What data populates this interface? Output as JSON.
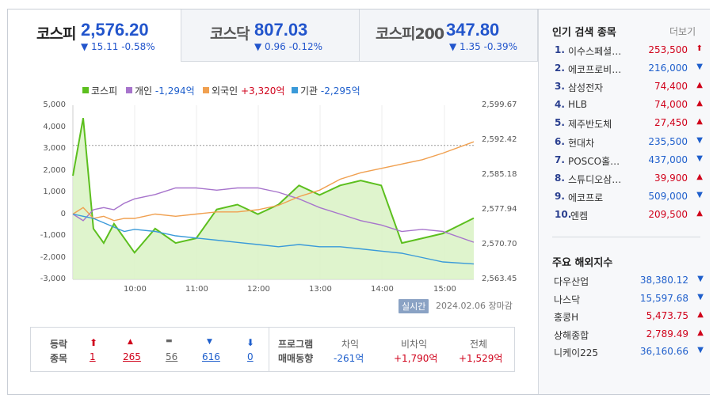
{
  "tabs": [
    {
      "name": "코스피",
      "value": "2,576.20",
      "change": "▼ 15.11 -0.58%",
      "active": true
    },
    {
      "name": "코스닥",
      "value": "807.03",
      "change": "▼ 0.96 -0.12%",
      "active": false
    },
    {
      "name": "코스피200",
      "value": "347.80",
      "change": "▼ 1.35 -0.39%",
      "active": false
    }
  ],
  "legend": [
    {
      "label": "코스피",
      "value": "",
      "color": "#5cbf1e"
    },
    {
      "label": "개인",
      "value": "-1,294억",
      "color": "#a774cc"
    },
    {
      "label": "외국인",
      "value": "+3,320억",
      "color": "#f0a050"
    },
    {
      "label": "기관",
      "value": "-2,295억",
      "color": "#3a9ad9"
    }
  ],
  "chart": {
    "left_axis": [
      "5,000",
      "4,000",
      "3,000",
      "2,000",
      "1,000",
      "0",
      "-1,000",
      "-2,000",
      "-3,000"
    ],
    "right_axis": [
      "2,599.67",
      "2,592.42",
      "2,585.18",
      "2,577.94",
      "2,570.70",
      "2,563.45"
    ],
    "x_axis": [
      "10:00",
      "11:00",
      "12:00",
      "13:00",
      "14:00",
      "15:00"
    ],
    "realtime_label": "실시간",
    "date": "2024.02.06 장마감"
  },
  "chart_data": {
    "type": "area",
    "x": [
      "09:00",
      "09:10",
      "09:20",
      "09:30",
      "09:40",
      "09:50",
      "10:00",
      "10:20",
      "10:40",
      "11:00",
      "11:20",
      "11:40",
      "12:00",
      "12:20",
      "12:40",
      "13:00",
      "13:20",
      "13:40",
      "14:00",
      "14:20",
      "14:40",
      "15:00",
      "15:30"
    ],
    "ylim_left": [
      -3000,
      5000
    ],
    "ylim_right": [
      2563.45,
      2599.67
    ],
    "series": [
      {
        "name": "코스피",
        "axis": "right",
        "values": [
          2585,
          2597,
          2574,
          2571,
          2575,
          2572,
          2569,
          2574,
          2571,
          2572,
          2578,
          2579,
          2577,
          2579,
          2583,
          2581,
          2583,
          2584,
          2583,
          2571,
          2572,
          2573,
          2576.2
        ]
      },
      {
        "name": "개인",
        "axis": "left",
        "values": [
          0,
          -300,
          200,
          300,
          200,
          500,
          700,
          900,
          1200,
          1200,
          1100,
          1200,
          1200,
          1000,
          700,
          300,
          0,
          -300,
          -500,
          -800,
          -700,
          -800,
          -1294
        ]
      },
      {
        "name": "외국인",
        "axis": "left",
        "values": [
          0,
          300,
          -200,
          -100,
          -300,
          -200,
          -200,
          0,
          -100,
          0,
          100,
          100,
          200,
          400,
          800,
          1100,
          1600,
          1900,
          2100,
          2300,
          2500,
          2800,
          3320
        ]
      },
      {
        "name": "기관",
        "axis": "left",
        "values": [
          0,
          -100,
          -200,
          -400,
          -600,
          -800,
          -700,
          -800,
          -1000,
          -1100,
          -1200,
          -1300,
          -1400,
          -1500,
          -1400,
          -1500,
          -1500,
          -1600,
          -1700,
          -1800,
          -2000,
          -2200,
          -2295
        ]
      }
    ]
  },
  "stats": {
    "label1": "등락",
    "label2": "종목",
    "items": [
      {
        "sym": "⬆",
        "count": "1",
        "cls": "up"
      },
      {
        "sym": "▲",
        "count": "265",
        "cls": "up"
      },
      {
        "sym": "▬",
        "count": "56",
        "cls": "flat"
      },
      {
        "sym": "▼",
        "count": "616",
        "cls": "down"
      },
      {
        "sym": "⬇",
        "count": "0",
        "cls": "down"
      }
    ],
    "program_label1": "프로그램",
    "program_label2": "매매동향",
    "program": [
      {
        "head": "차익",
        "value": "-261억",
        "cls": "down"
      },
      {
        "head": "비차익",
        "value": "+1,790억",
        "cls": "up"
      },
      {
        "head": "전체",
        "value": "+1,529억",
        "cls": "up"
      }
    ]
  },
  "popular": {
    "title": "인기 검색 종목",
    "more": "더보기",
    "items": [
      {
        "rank": "1.",
        "name": "이수스페셜…",
        "price": "253,500",
        "dir": "⬆",
        "cls": "up"
      },
      {
        "rank": "2.",
        "name": "에코프로비…",
        "price": "216,000",
        "dir": "▼",
        "cls": "down"
      },
      {
        "rank": "3.",
        "name": "삼성전자",
        "price": "74,400",
        "dir": "▲",
        "cls": "up"
      },
      {
        "rank": "4.",
        "name": "HLB",
        "price": "74,000",
        "dir": "▲",
        "cls": "up"
      },
      {
        "rank": "5.",
        "name": "제주반도체",
        "price": "27,450",
        "dir": "▲",
        "cls": "up"
      },
      {
        "rank": "6.",
        "name": "현대차",
        "price": "235,500",
        "dir": "▼",
        "cls": "down"
      },
      {
        "rank": "7.",
        "name": "POSCO홀…",
        "price": "437,000",
        "dir": "▼",
        "cls": "down"
      },
      {
        "rank": "8.",
        "name": "스튜디오삼…",
        "price": "39,900",
        "dir": "▲",
        "cls": "up"
      },
      {
        "rank": "9.",
        "name": "에코프로",
        "price": "509,000",
        "dir": "▼",
        "cls": "down"
      },
      {
        "rank": "10.",
        "name": "엔켐",
        "price": "209,500",
        "dir": "▲",
        "cls": "up"
      }
    ]
  },
  "world": {
    "title": "주요 해외지수",
    "items": [
      {
        "name": "다우산업",
        "price": "38,380.12",
        "dir": "▼",
        "cls": "down"
      },
      {
        "name": "나스닥",
        "price": "15,597.68",
        "dir": "▼",
        "cls": "down"
      },
      {
        "name": "홍콩H",
        "price": "5,473.75",
        "dir": "▲",
        "cls": "up"
      },
      {
        "name": "상해종합",
        "price": "2,789.49",
        "dir": "▲",
        "cls": "up"
      },
      {
        "name": "니케이225",
        "price": "36,160.66",
        "dir": "▼",
        "cls": "down"
      }
    ]
  }
}
